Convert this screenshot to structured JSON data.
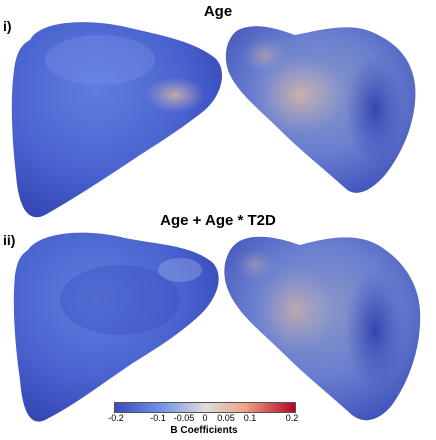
{
  "panels": [
    {
      "label": "i)",
      "title": "Age"
    },
    {
      "label": "ii)",
      "title": "Age + Age * T2D"
    }
  ],
  "colorbar": {
    "title": "B Coefficients",
    "ticks": [
      "-0.2",
      "-0.1",
      "-0.05",
      "0",
      "0.05",
      "0.1",
      "0.2"
    ],
    "colors": {
      "min": "#3b4cc0",
      "mid": "#dddddd",
      "max": "#b40426"
    }
  }
}
